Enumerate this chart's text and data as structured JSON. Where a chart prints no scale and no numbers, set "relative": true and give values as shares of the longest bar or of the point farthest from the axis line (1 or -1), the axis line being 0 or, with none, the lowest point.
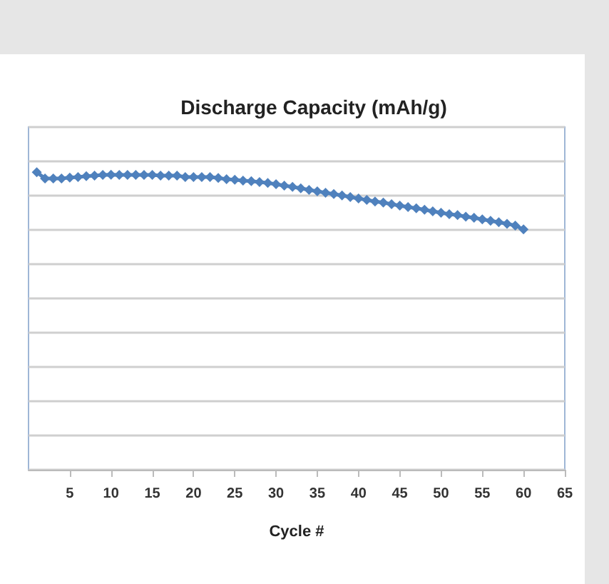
{
  "chart_data": {
    "type": "line",
    "title": "Discharge Capacity (mAh/g)",
    "xlabel": "Cycle #",
    "relative": true,
    "xlim": [
      0,
      65
    ],
    "xticks": [
      5,
      10,
      15,
      20,
      25,
      30,
      35,
      40,
      45,
      50,
      55,
      60,
      65
    ],
    "grid": "y",
    "marker": "diamond",
    "line_style": "solid",
    "x": [
      1,
      2,
      3,
      4,
      5,
      6,
      7,
      8,
      9,
      10,
      11,
      12,
      13,
      14,
      15,
      16,
      17,
      18,
      19,
      20,
      21,
      22,
      23,
      24,
      25,
      26,
      27,
      28,
      29,
      30,
      31,
      32,
      33,
      34,
      35,
      36,
      37,
      38,
      39,
      40,
      41,
      42,
      43,
      44,
      45,
      46,
      47,
      48,
      49,
      50,
      51,
      52,
      53,
      54,
      55,
      56,
      57,
      58,
      59,
      60
    ],
    "series": [
      {
        "color": "#4f81bd",
        "values": [
          1.0,
          0.979,
          0.979,
          0.979,
          0.982,
          0.984,
          0.987,
          0.989,
          0.991,
          0.992,
          0.991,
          0.991,
          0.991,
          0.991,
          0.991,
          0.989,
          0.989,
          0.989,
          0.984,
          0.984,
          0.984,
          0.984,
          0.981,
          0.977,
          0.975,
          0.972,
          0.97,
          0.967,
          0.964,
          0.96,
          0.955,
          0.951,
          0.946,
          0.941,
          0.936,
          0.931,
          0.927,
          0.922,
          0.917,
          0.912,
          0.907,
          0.902,
          0.898,
          0.893,
          0.888,
          0.883,
          0.879,
          0.874,
          0.869,
          0.864,
          0.859,
          0.856,
          0.851,
          0.847,
          0.842,
          0.837,
          0.832,
          0.827,
          0.821,
          0.808
        ]
      }
    ]
  }
}
